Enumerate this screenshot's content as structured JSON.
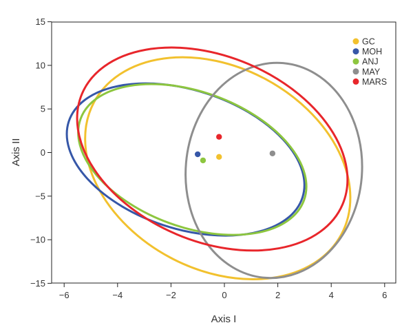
{
  "chart_data": {
    "type": "scatter",
    "title": "",
    "xlabel": "Axis I",
    "ylabel": "Axis II",
    "xlim": [
      -6.5,
      6.5
    ],
    "ylim": [
      -15,
      15
    ],
    "xticks": [
      -6,
      -4,
      -2,
      0,
      2,
      4,
      6
    ],
    "yticks": [
      -15,
      -10,
      -5,
      0,
      5,
      10,
      15
    ],
    "grid": false,
    "legend_position": "top-right",
    "series": [
      {
        "name": "GC",
        "color": "#F2C12E",
        "centroid": [
          -0.2,
          -0.5
        ],
        "ellipse_cx_cy_rx_ry_angle": [
          -0.25,
          -1.8,
          5.25,
          11.6,
          118
        ]
      },
      {
        "name": "MOH",
        "color": "#3657A8",
        "centroid": [
          -1.0,
          -0.2
        ],
        "ellipse_cx_cy_rx_ry_angle": [
          -1.45,
          -0.8,
          4.6,
          7.95,
          108
        ]
      },
      {
        "name": "ANJ",
        "color": "#8DC63F",
        "centroid": [
          -0.8,
          -0.9
        ],
        "ellipse_cx_cy_rx_ry_angle": [
          -1.2,
          -0.8,
          4.45,
          7.75,
          110
        ]
      },
      {
        "name": "MAY",
        "color": "#8E8E8E",
        "centroid": [
          1.8,
          -0.1
        ],
        "ellipse_cx_cy_rx_ry_angle": [
          1.85,
          -2.05,
          3.3,
          12.35,
          95
        ]
      },
      {
        "name": "MARS",
        "color": "#E8262B",
        "centroid": [
          -0.2,
          1.8
        ],
        "ellipse_cx_cy_rx_ry_angle": [
          -0.45,
          0.4,
          5.3,
          10.6,
          113
        ]
      }
    ]
  }
}
